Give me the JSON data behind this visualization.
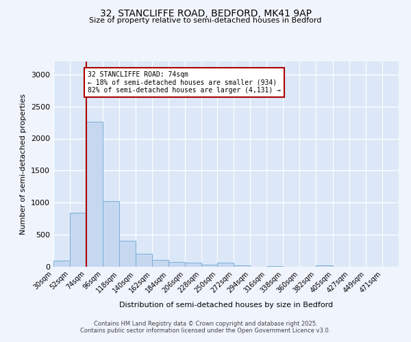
{
  "title_line1": "32, STANCLIFFE ROAD, BEDFORD, MK41 9AP",
  "title_line2": "Size of property relative to semi-detached houses in Bedford",
  "xlabel": "Distribution of semi-detached houses by size in Bedford",
  "ylabel": "Number of semi-detached properties",
  "fig_background_color": "#f0f4fc",
  "axes_background_color": "#dce8f8",
  "bar_color": "#c5d8f0",
  "bar_edge_color": "#7aaed6",
  "grid_color": "#ffffff",
  "annotation_line_color": "#aa0000",
  "categories": [
    "30sqm",
    "52sqm",
    "74sqm",
    "96sqm",
    "118sqm",
    "140sqm",
    "162sqm",
    "184sqm",
    "206sqm",
    "228sqm",
    "250sqm",
    "272sqm",
    "294sqm",
    "316sqm",
    "338sqm",
    "360sqm",
    "382sqm",
    "405sqm",
    "427sqm",
    "449sqm",
    "471sqm"
  ],
  "bin_edges": [
    30,
    52,
    74,
    96,
    118,
    140,
    162,
    184,
    206,
    228,
    250,
    272,
    294,
    316,
    338,
    360,
    382,
    405,
    427,
    449,
    471,
    493
  ],
  "values": [
    100,
    840,
    2260,
    1020,
    410,
    205,
    110,
    80,
    60,
    35,
    60,
    25,
    0,
    10,
    0,
    0,
    25,
    0,
    0,
    0,
    0
  ],
  "ylim": [
    0,
    3200
  ],
  "yticks": [
    0,
    500,
    1000,
    1500,
    2000,
    2500,
    3000
  ],
  "property_size": 74,
  "annotation_text": "32 STANCLIFFE ROAD: 74sqm\n← 18% of semi-detached houses are smaller (934)\n82% of semi-detached houses are larger (4,131) →",
  "footer_line1": "Contains HM Land Registry data © Crown copyright and database right 2025.",
  "footer_line2": "Contains public sector information licensed under the Open Government Licence v3.0."
}
